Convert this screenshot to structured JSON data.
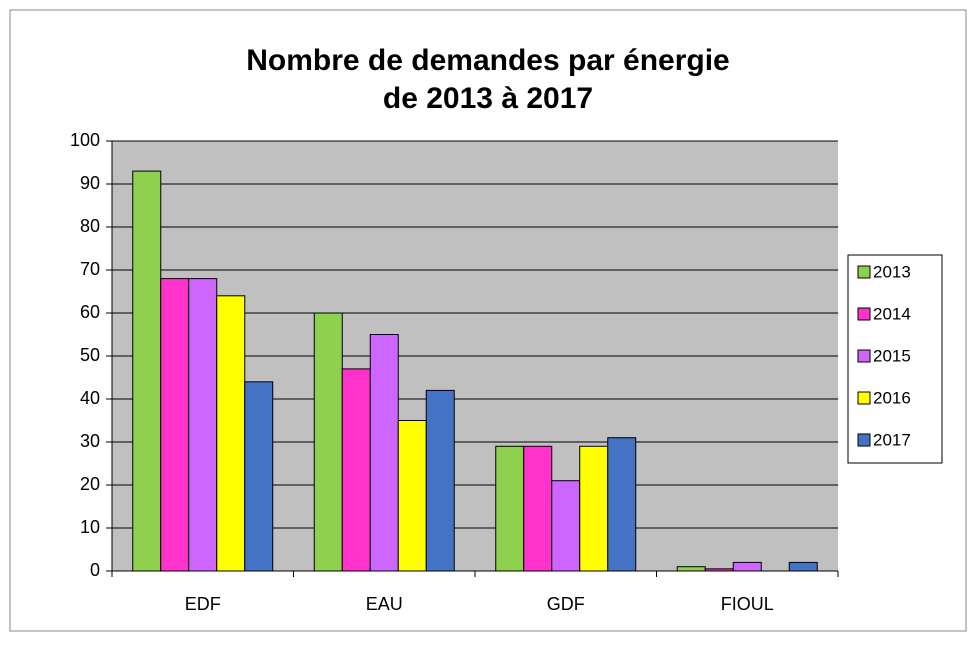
{
  "chart_data": {
    "type": "bar",
    "title": [
      "Nombre de demandes par énergie",
      "de 2013 à 2017"
    ],
    "categories": [
      "EDF",
      "EAU",
      "GDF",
      "FIOUL"
    ],
    "series": [
      {
        "name": "2013",
        "color": "#8fd14f",
        "values": [
          93,
          60,
          29,
          1
        ]
      },
      {
        "name": "2014",
        "color": "#ff33cc",
        "values": [
          68,
          47,
          29,
          0.5
        ]
      },
      {
        "name": "2015",
        "color": "#cc66ff",
        "values": [
          68,
          55,
          21,
          2
        ]
      },
      {
        "name": "2016",
        "color": "#ffff00",
        "values": [
          64,
          35,
          29,
          0
        ]
      },
      {
        "name": "2017",
        "color": "#4472c4",
        "values": [
          44,
          42,
          31,
          2
        ]
      }
    ],
    "ylim": [
      0,
      100
    ],
    "yticks": [
      0,
      10,
      20,
      30,
      40,
      50,
      60,
      70,
      80,
      90,
      100
    ],
    "grid": true,
    "legend": "right"
  }
}
